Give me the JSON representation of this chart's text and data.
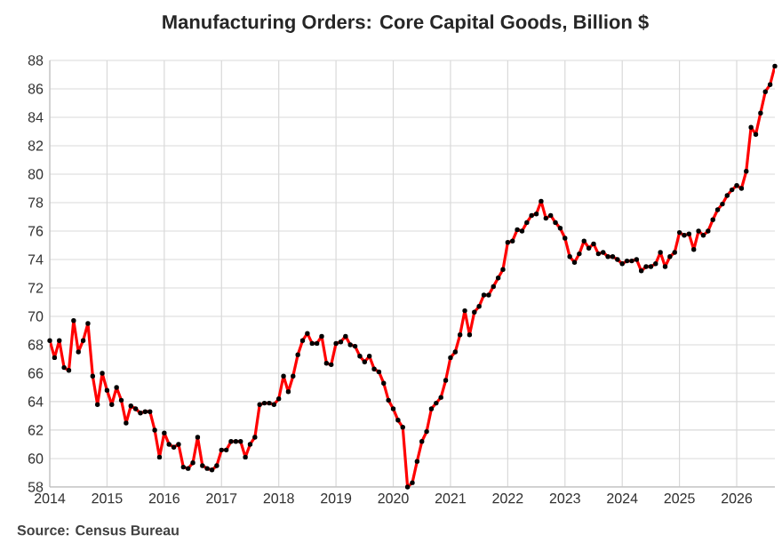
{
  "chart_data": {
    "type": "line",
    "title": "Manufacturing Orders: Core Capital Goods, Billion $",
    "annotations": [
      "Source: Census Bureau"
    ],
    "x": [
      "2014-01",
      "2014-02",
      "2014-03",
      "2014-04",
      "2014-05",
      "2014-06",
      "2014-07",
      "2014-08",
      "2014-09",
      "2014-10",
      "2014-11",
      "2014-12",
      "2015-01",
      "2015-02",
      "2015-03",
      "2015-04",
      "2015-05",
      "2015-06",
      "2015-07",
      "2015-08",
      "2015-09",
      "2015-10",
      "2015-11",
      "2015-12",
      "2016-01",
      "2016-02",
      "2016-03",
      "2016-04",
      "2016-05",
      "2016-06",
      "2016-07",
      "2016-08",
      "2016-09",
      "2016-10",
      "2016-11",
      "2016-12",
      "2017-01",
      "2017-02",
      "2017-03",
      "2017-04",
      "2017-05",
      "2017-06",
      "2017-07",
      "2017-08",
      "2017-09",
      "2017-10",
      "2017-11",
      "2017-12",
      "2018-01",
      "2018-02",
      "2018-03",
      "2018-04",
      "2018-05",
      "2018-06",
      "2018-07",
      "2018-08",
      "2018-09",
      "2018-10",
      "2018-11",
      "2018-12",
      "2019-01",
      "2019-02",
      "2019-03",
      "2019-04",
      "2019-05",
      "2019-06",
      "2019-07",
      "2019-08",
      "2019-09",
      "2019-10",
      "2019-11",
      "2019-12",
      "2020-01",
      "2020-02",
      "2020-03",
      "2020-04",
      "2020-05",
      "2020-06",
      "2020-07",
      "2020-08",
      "2020-09",
      "2020-10",
      "2020-11",
      "2020-12",
      "2021-01",
      "2021-02",
      "2021-03",
      "2021-04",
      "2021-05",
      "2021-06",
      "2021-07",
      "2021-08",
      "2021-09",
      "2021-10",
      "2021-11",
      "2021-12",
      "2022-01",
      "2022-02",
      "2022-03",
      "2022-04",
      "2022-05",
      "2022-06",
      "2022-07",
      "2022-08",
      "2022-09",
      "2022-10",
      "2022-11",
      "2022-12",
      "2023-01",
      "2023-02",
      "2023-03",
      "2023-04",
      "2023-05",
      "2023-06",
      "2023-07",
      "2023-08",
      "2023-09",
      "2023-10",
      "2023-11",
      "2023-12",
      "2024-01",
      "2024-02",
      "2024-03",
      "2024-04",
      "2024-05",
      "2024-06",
      "2024-07",
      "2024-08",
      "2024-09",
      "2024-10",
      "2024-11",
      "2024-12",
      "2025-01",
      "2025-02",
      "2025-03",
      "2025-04",
      "2025-05",
      "2025-06",
      "2025-07",
      "2025-08",
      "2025-09",
      "2025-10",
      "2025-11",
      "2025-12",
      "2026-01",
      "2026-02",
      "2026-03",
      "2026-04",
      "2026-05",
      "2026-06",
      "2026-07",
      "2026-08",
      "2026-09"
    ],
    "series": [
      {
        "color": "#ff0000",
        "values": [
          68.3,
          67.1,
          68.3,
          66.4,
          66.2,
          69.7,
          67.5,
          68.3,
          69.5,
          65.8,
          63.8,
          66.0,
          64.8,
          63.8,
          65.0,
          64.1,
          62.5,
          63.7,
          63.5,
          63.2,
          63.3,
          63.3,
          62.0,
          60.1,
          61.8,
          61.0,
          60.8,
          61.0,
          59.4,
          59.3,
          59.7,
          61.5,
          59.5,
          59.3,
          59.2,
          59.5,
          60.6,
          60.6,
          61.2,
          61.2,
          61.2,
          60.1,
          61.0,
          61.5,
          63.8,
          63.9,
          63.9,
          63.8,
          64.2,
          65.8,
          64.7,
          65.8,
          67.3,
          68.3,
          68.8,
          68.1,
          68.1,
          68.6,
          66.7,
          66.6,
          68.1,
          68.2,
          68.6,
          68.0,
          67.9,
          67.2,
          66.8,
          67.2,
          66.3,
          66.1,
          65.3,
          64.1,
          63.5,
          62.7,
          62.2,
          58.0,
          58.3,
          59.8,
          61.2,
          61.9,
          63.5,
          63.9,
          64.3,
          65.5,
          67.1,
          67.5,
          68.7,
          70.4,
          68.7,
          70.3,
          70.7,
          71.5,
          71.5,
          72.1,
          72.7,
          73.3,
          75.2,
          75.3,
          76.1,
          76.0,
          76.6,
          77.1,
          77.2,
          78.1,
          76.9,
          77.1,
          76.6,
          76.2,
          75.5,
          74.2,
          73.8,
          74.4,
          75.3,
          74.8,
          75.1,
          74.4,
          74.5,
          74.2,
          74.2,
          74.0,
          73.7,
          73.9,
          73.9,
          74.0,
          73.2,
          73.5,
          73.5,
          73.7,
          74.5,
          73.5,
          74.2,
          74.5,
          75.9,
          75.7,
          75.8,
          74.7,
          76.0,
          75.7,
          76.0,
          76.8,
          77.5,
          77.9,
          78.5,
          78.9,
          79.2,
          79.0,
          80.2,
          83.3,
          82.8,
          84.3,
          85.8,
          86.3,
          87.6
        ]
      }
    ],
    "xlim": [
      "2014-01",
      "2026-09"
    ],
    "xticks": [
      "2014",
      "2015",
      "2016",
      "2017",
      "2018",
      "2019",
      "2020",
      "2021",
      "2022",
      "2023",
      "2024",
      "2025",
      "2026"
    ],
    "ylim": [
      58,
      88
    ],
    "yticks": [
      58,
      60,
      62,
      64,
      66,
      68,
      70,
      72,
      74,
      76,
      78,
      80,
      82,
      84,
      86,
      88
    ],
    "grid": true,
    "marker": "circle",
    "line_style": "solid"
  }
}
